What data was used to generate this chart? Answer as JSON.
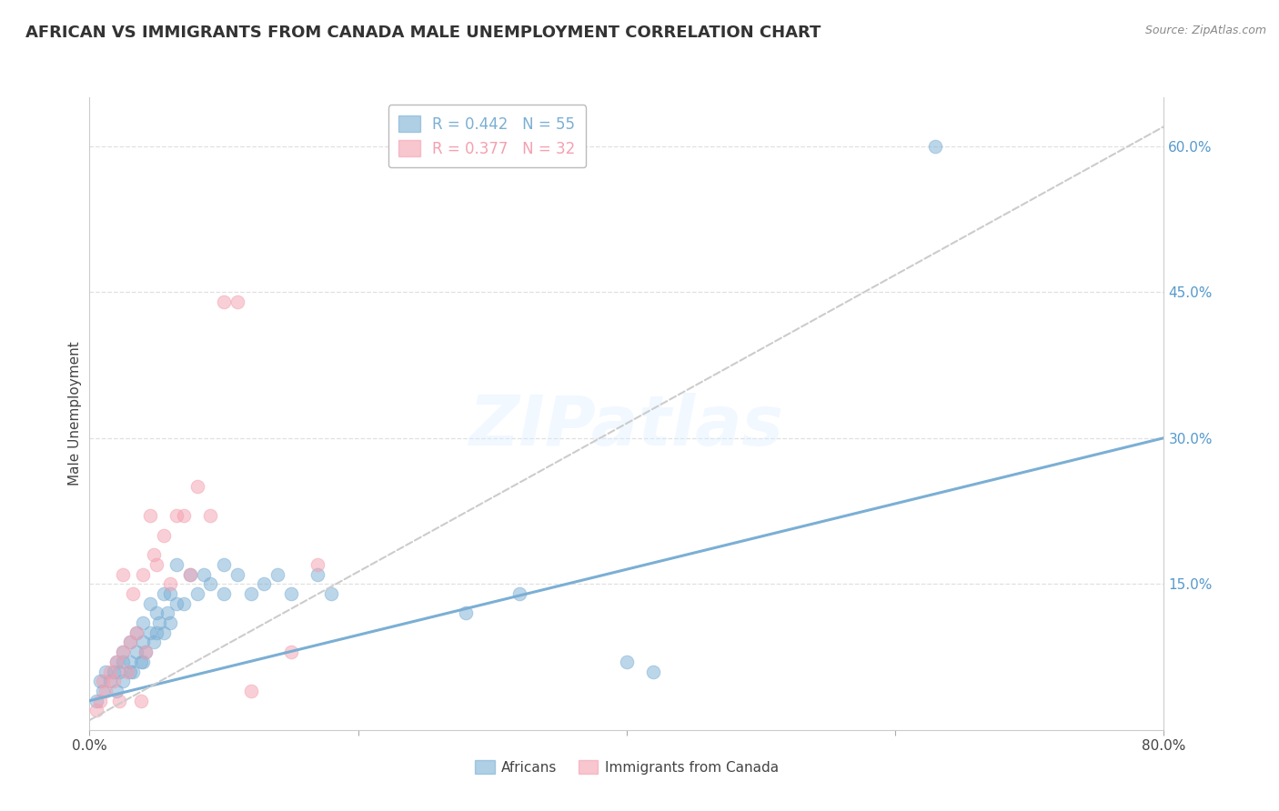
{
  "title": "AFRICAN VS IMMIGRANTS FROM CANADA MALE UNEMPLOYMENT CORRELATION CHART",
  "source": "Source: ZipAtlas.com",
  "ylabel": "Male Unemployment",
  "xlim": [
    0.0,
    0.8
  ],
  "ylim": [
    0.0,
    0.65
  ],
  "xticks": [
    0.0,
    0.2,
    0.4,
    0.6,
    0.8
  ],
  "xticklabels": [
    "0.0%",
    "",
    "",
    "",
    "80.0%"
  ],
  "ytick_positions": [
    0.0,
    0.15,
    0.3,
    0.45,
    0.6
  ],
  "ytick_labels": [
    "",
    "15.0%",
    "30.0%",
    "45.0%",
    "60.0%"
  ],
  "grid_color": "#e0e0e0",
  "background_color": "#ffffff",
  "watermark": "ZIPatlas",
  "legend_r1": "R = 0.442",
  "legend_n1": "N = 55",
  "legend_r2": "R = 0.377",
  "legend_n2": "N = 32",
  "africans_color": "#7bafd4",
  "canada_color": "#f4a0b0",
  "africans_label": "Africans",
  "canada_label": "Immigrants from Canada",
  "title_fontsize": 13,
  "axis_label_fontsize": 11,
  "tick_fontsize": 11,
  "right_tick_color": "#5599cc",
  "africans_x": [
    0.005,
    0.008,
    0.01,
    0.012,
    0.015,
    0.018,
    0.02,
    0.02,
    0.022,
    0.025,
    0.025,
    0.025,
    0.03,
    0.03,
    0.03,
    0.032,
    0.035,
    0.035,
    0.038,
    0.04,
    0.04,
    0.04,
    0.042,
    0.045,
    0.045,
    0.048,
    0.05,
    0.05,
    0.052,
    0.055,
    0.055,
    0.058,
    0.06,
    0.06,
    0.065,
    0.065,
    0.07,
    0.075,
    0.08,
    0.085,
    0.09,
    0.1,
    0.1,
    0.11,
    0.12,
    0.13,
    0.14,
    0.15,
    0.17,
    0.18,
    0.28,
    0.32,
    0.4,
    0.42,
    0.63
  ],
  "africans_y": [
    0.03,
    0.05,
    0.04,
    0.06,
    0.05,
    0.06,
    0.04,
    0.07,
    0.06,
    0.05,
    0.07,
    0.08,
    0.06,
    0.07,
    0.09,
    0.06,
    0.08,
    0.1,
    0.07,
    0.07,
    0.09,
    0.11,
    0.08,
    0.1,
    0.13,
    0.09,
    0.1,
    0.12,
    0.11,
    0.1,
    0.14,
    0.12,
    0.11,
    0.14,
    0.13,
    0.17,
    0.13,
    0.16,
    0.14,
    0.16,
    0.15,
    0.14,
    0.17,
    0.16,
    0.14,
    0.15,
    0.16,
    0.14,
    0.16,
    0.14,
    0.12,
    0.14,
    0.07,
    0.06,
    0.6
  ],
  "canada_x": [
    0.005,
    0.008,
    0.01,
    0.012,
    0.015,
    0.018,
    0.02,
    0.022,
    0.025,
    0.025,
    0.028,
    0.03,
    0.032,
    0.035,
    0.038,
    0.04,
    0.042,
    0.045,
    0.048,
    0.05,
    0.055,
    0.06,
    0.065,
    0.07,
    0.075,
    0.08,
    0.09,
    0.1,
    0.11,
    0.12,
    0.15,
    0.17
  ],
  "canada_y": [
    0.02,
    0.03,
    0.05,
    0.04,
    0.06,
    0.05,
    0.07,
    0.03,
    0.08,
    0.16,
    0.06,
    0.09,
    0.14,
    0.1,
    0.03,
    0.16,
    0.08,
    0.22,
    0.18,
    0.17,
    0.2,
    0.15,
    0.22,
    0.22,
    0.16,
    0.25,
    0.22,
    0.44,
    0.44,
    0.04,
    0.08,
    0.17
  ],
  "africans_trend_x": [
    0.0,
    0.8
  ],
  "africans_trend_y": [
    0.03,
    0.3
  ],
  "canada_trend_x": [
    0.0,
    0.8
  ],
  "canada_trend_y": [
    0.01,
    0.62
  ]
}
